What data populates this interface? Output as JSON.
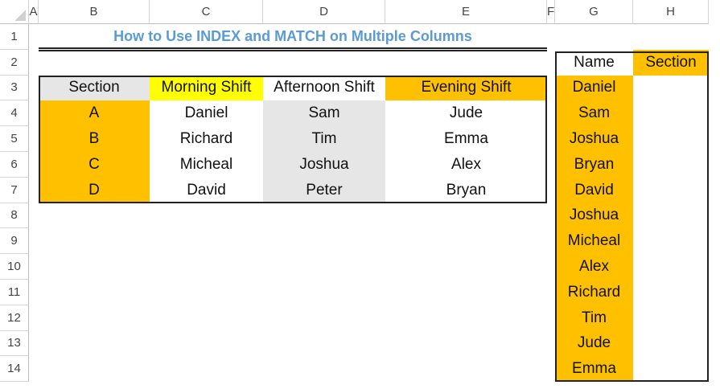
{
  "columns": [
    "A",
    "B",
    "C",
    "D",
    "E",
    "F",
    "G",
    "H"
  ],
  "rows": [
    "1",
    "2",
    "3",
    "4",
    "5",
    "6",
    "7",
    "8",
    "9",
    "10",
    "11",
    "12",
    "13",
    "14"
  ],
  "title": "How to Use INDEX and MATCH on Multiple Columns",
  "colors": {
    "title": "#5b9bd5",
    "orange": "#ffc000",
    "yellow": "#ffff00",
    "gray": "#e6e6e6"
  },
  "main_table": {
    "headers": [
      "Section",
      "Morning Shift",
      "Afternoon Shift",
      "Evening Shift"
    ],
    "rows": [
      [
        "A",
        "Daniel",
        "Sam",
        "Jude"
      ],
      [
        "B",
        "Richard",
        "Tim",
        "Emma"
      ],
      [
        "C",
        "Micheal",
        "Joshua",
        "Alex"
      ],
      [
        "D",
        "David",
        "Peter",
        "Bryan"
      ]
    ]
  },
  "lookup_table": {
    "headers": [
      "Name",
      "Section"
    ],
    "names": [
      "Daniel",
      "Sam",
      "Joshua",
      "Bryan",
      "David",
      "Joshua",
      "Micheal",
      "Alex",
      "Richard",
      "Tim",
      "Jude",
      "Emma"
    ]
  }
}
